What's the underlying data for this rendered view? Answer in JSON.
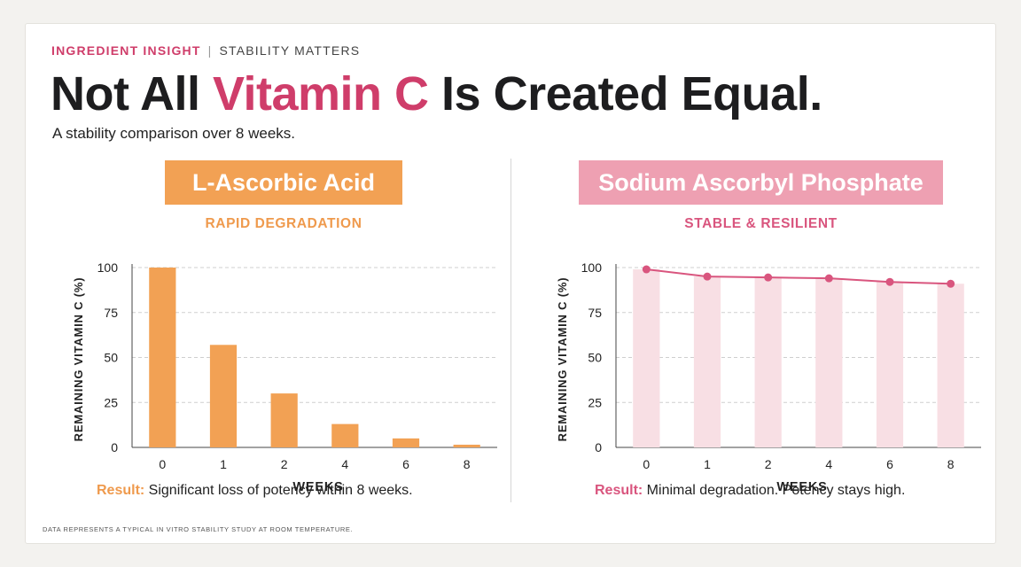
{
  "eyebrow": {
    "kicker": "INGREDIENT INSIGHT",
    "separator": "|",
    "sub": "STABILITY MATTERS"
  },
  "headline": {
    "part1": "Not All ",
    "highlight": "Vitamin C",
    "part2": " Is Created Equal."
  },
  "subtitle": "A stability comparison over 8 weeks.",
  "colors": {
    "accent_pink": "#cf3d6a",
    "orange": "#f2a154",
    "pink_light": "#f8dfe4",
    "pink_line": "#d9557e"
  },
  "panels": [
    {
      "pill": "L-Ascorbic Acid",
      "tag": "RAPID DEGRADATION",
      "result_label": "Result:",
      "result_text": " Significant loss of potency within 8 weeks."
    },
    {
      "pill": "Sodium Ascorbyl Phosphate",
      "tag": "STABLE & RESILIENT",
      "result_label": "Result:",
      "result_text": " Minimal degradation. Potency stays high."
    }
  ],
  "chart_data": [
    {
      "type": "bar",
      "categories": [
        "0",
        "1",
        "2",
        "4",
        "6",
        "8"
      ],
      "values": [
        100,
        57,
        30,
        13,
        5,
        1.5
      ],
      "title": "L-Ascorbic Acid",
      "xlabel": "WEEKS",
      "ylabel": "REMAINING VITAMIN C (%)",
      "ylim": [
        0,
        100
      ],
      "yticks": [
        0,
        25,
        50,
        75,
        100
      ],
      "grid": true
    },
    {
      "type": "line",
      "categories": [
        "0",
        "1",
        "2",
        "4",
        "6",
        "8"
      ],
      "values": [
        99,
        95,
        94.5,
        94,
        92,
        91
      ],
      "title": "Sodium Ascorbyl Phosphate",
      "xlabel": "WEEKS",
      "ylabel": "REMAINING VITAMIN C (%)",
      "ylim": [
        0,
        100
      ],
      "yticks": [
        0,
        25,
        50,
        75,
        100
      ],
      "grid": true
    }
  ],
  "footnote": "DATA REPRESENTS A TYPICAL IN VITRO STABILITY STUDY AT ROOM TEMPERATURE."
}
